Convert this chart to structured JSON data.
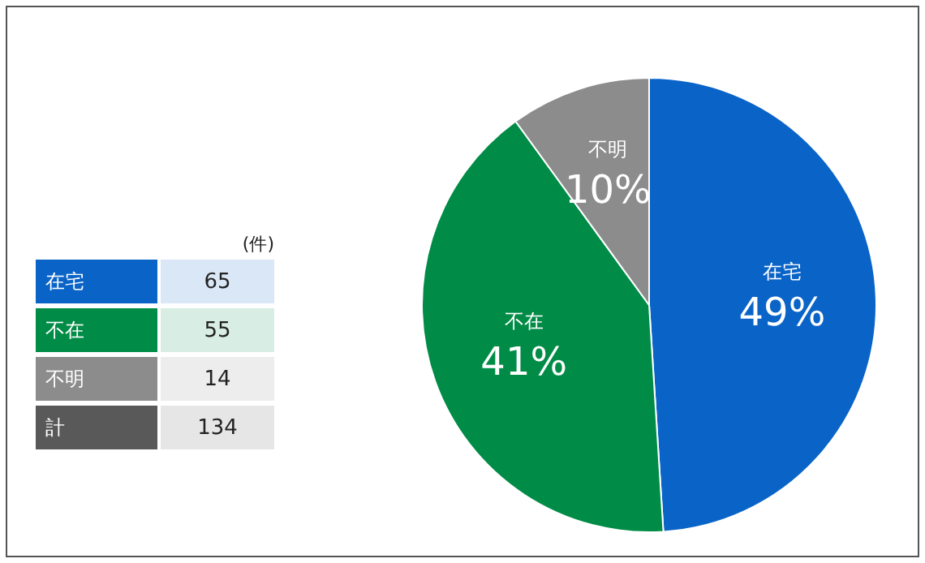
{
  "chart_data": [
    {
      "type": "other",
      "categories": [
        "在宅",
        "不在",
        "不明",
        "計"
      ],
      "values": [
        65,
        55,
        14,
        134
      ],
      "data_labels": true,
      "annotations": [
        "(件)"
      ]
    },
    {
      "type": "pie",
      "categories": [
        "在宅",
        "不在",
        "不明"
      ],
      "values": [
        49,
        41,
        10
      ],
      "colors": [
        "#0a64c8",
        "#008c46",
        "#8c8c8c"
      ],
      "value_labels": [
        "49%",
        "41%",
        "10%"
      ]
    }
  ]
}
